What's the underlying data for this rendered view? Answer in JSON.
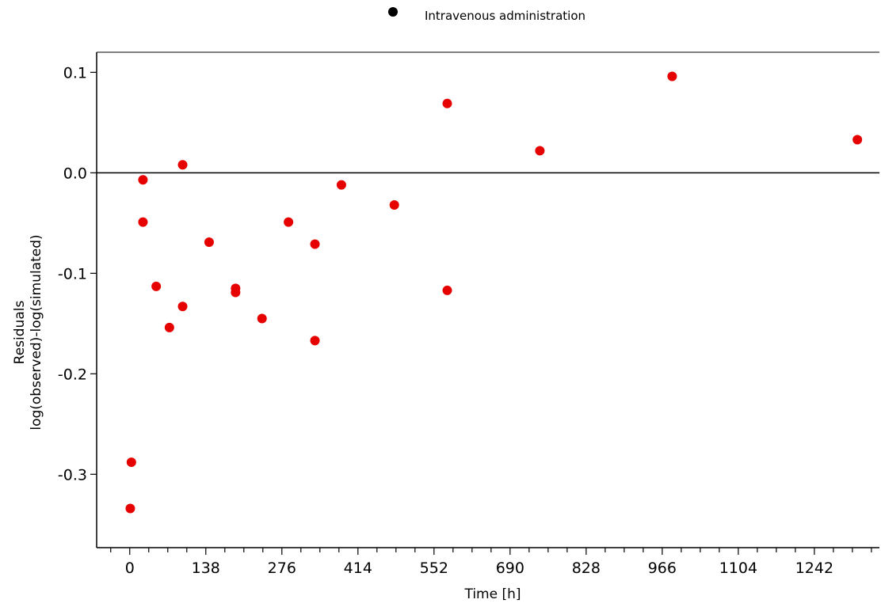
{
  "chart_data": {
    "type": "scatter",
    "xlabel": "Time [h]",
    "ylabel_lines": [
      "Residuals",
      "log(observed)-log(simulated)"
    ],
    "xlim": [
      -60,
      1360
    ],
    "ylim": [
      -0.373,
      0.12
    ],
    "x_ticks": [
      0,
      138,
      276,
      414,
      552,
      690,
      828,
      966,
      1104,
      1242
    ],
    "x_tick_labels": [
      "0",
      "138",
      "276",
      "414",
      "552",
      "690",
      "828",
      "966",
      "1104",
      "1242"
    ],
    "x_minor_step": 34.5,
    "y_ticks": [
      0.1,
      0.0,
      -0.1,
      -0.2,
      -0.3
    ],
    "y_tick_labels": [
      "0.1",
      "0.0",
      "-0.1",
      "-0.2",
      "-0.3"
    ],
    "reference_line_y": 0,
    "legend": {
      "label": "Intravenous administration",
      "marker_color": "#000000",
      "placement": "top-center"
    },
    "series": [
      {
        "name": "Intravenous administration",
        "color": "#e60000",
        "points": [
          {
            "x": 1,
            "y": -0.334
          },
          {
            "x": 3,
            "y": -0.288
          },
          {
            "x": 24,
            "y": -0.007
          },
          {
            "x": 24,
            "y": -0.049
          },
          {
            "x": 48,
            "y": -0.113
          },
          {
            "x": 72,
            "y": -0.154
          },
          {
            "x": 96,
            "y": 0.008
          },
          {
            "x": 96,
            "y": -0.133
          },
          {
            "x": 144,
            "y": -0.069
          },
          {
            "x": 192,
            "y": -0.115
          },
          {
            "x": 192,
            "y": -0.119
          },
          {
            "x": 240,
            "y": -0.145
          },
          {
            "x": 288,
            "y": -0.049
          },
          {
            "x": 336,
            "y": -0.071
          },
          {
            "x": 336,
            "y": -0.167
          },
          {
            "x": 384,
            "y": -0.012
          },
          {
            "x": 480,
            "y": -0.032
          },
          {
            "x": 576,
            "y": 0.069
          },
          {
            "x": 576,
            "y": -0.117
          },
          {
            "x": 744,
            "y": 0.022
          },
          {
            "x": 984,
            "y": 0.096
          },
          {
            "x": 1320,
            "y": 0.033
          }
        ]
      }
    ]
  }
}
